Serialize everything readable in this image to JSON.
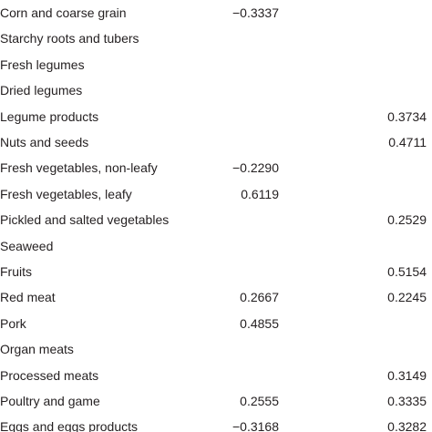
{
  "table": {
    "rows": [
      [
        "Corn and coarse grain",
        "−0.3337",
        null
      ],
      [
        "Starchy roots and tubers",
        null,
        null
      ],
      [
        "Fresh legumes",
        null,
        null
      ],
      [
        "Dried legumes",
        null,
        null
      ],
      [
        "Legume products",
        null,
        "0.3734"
      ],
      [
        "Nuts and seeds",
        null,
        "0.4711"
      ],
      [
        "Fresh vegetables, non-leafy",
        "−0.2290",
        null
      ],
      [
        "Fresh vegetables, leafy",
        "0.6119",
        null
      ],
      [
        "Pickled and salted vegetables",
        null,
        "0.2529"
      ],
      [
        "Seaweed",
        null,
        null
      ],
      [
        "Fruits",
        null,
        "0.5154"
      ],
      [
        "Red meat",
        "0.2667",
        "0.2245"
      ],
      [
        "Pork",
        "0.4855",
        null
      ],
      [
        "Organ meats",
        null,
        null
      ],
      [
        "Processed meats",
        null,
        "0.3149"
      ],
      [
        "Poultry and game",
        "0.2555",
        "0.3335"
      ],
      [
        "Eggs and eggs products",
        "−0.3168",
        "0.3282"
      ]
    ]
  }
}
